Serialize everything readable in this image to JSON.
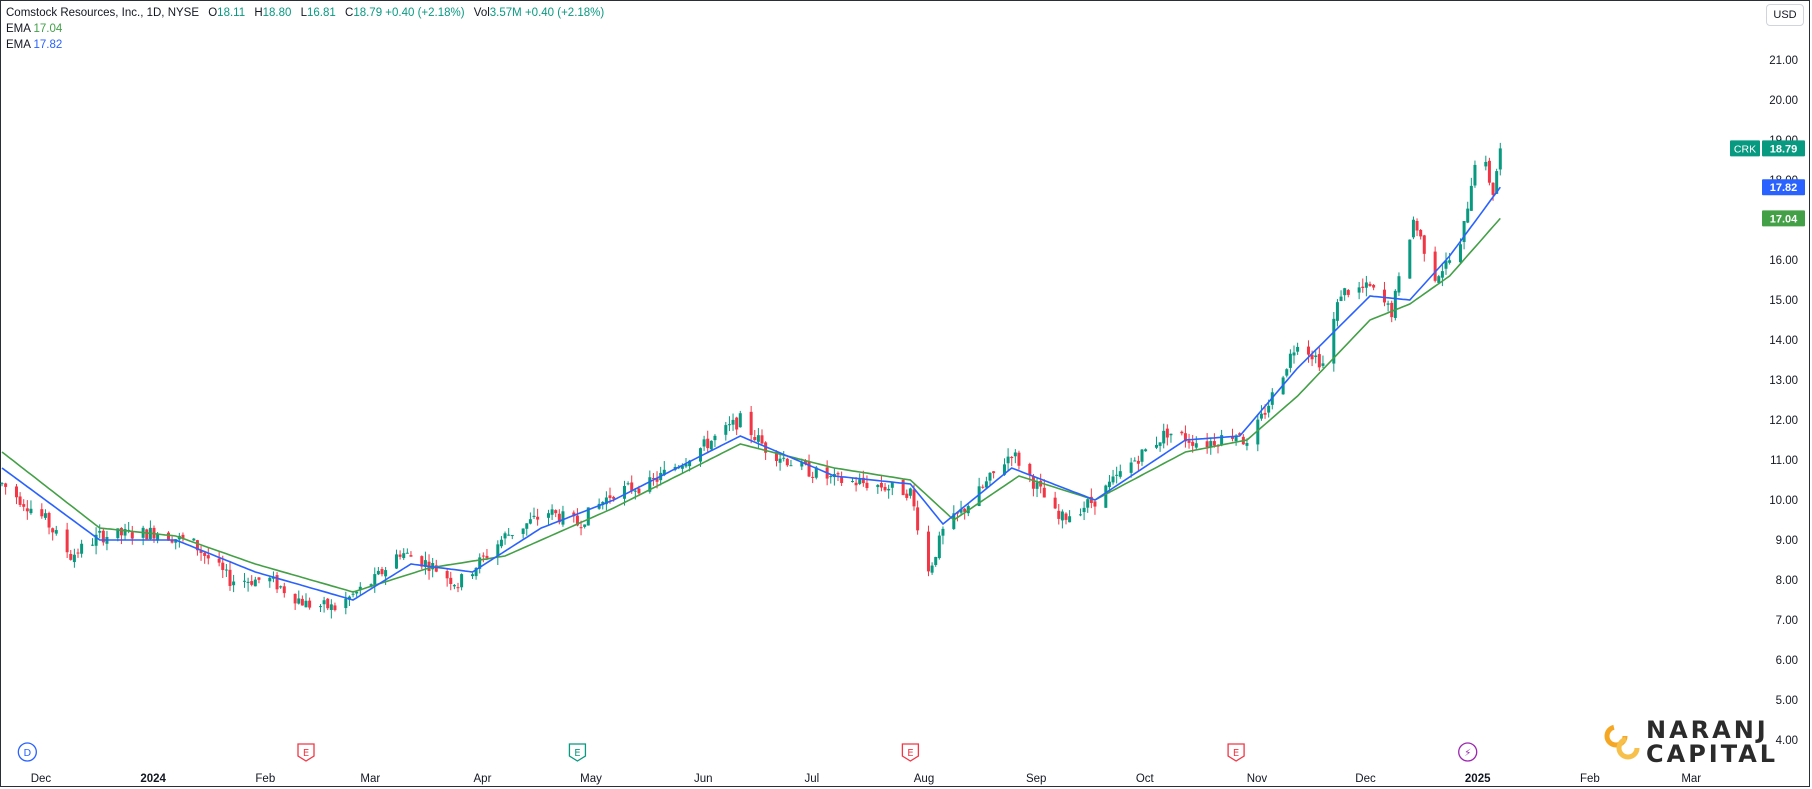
{
  "header": {
    "symbol_line": "Comstock Resources, Inc., 1D, NYSE",
    "o_label": "O",
    "o_value": "18.11",
    "h_label": "H",
    "h_value": "18.80",
    "l_label": "L",
    "l_value": "16.81",
    "c_label": "C",
    "c_value": "18.79",
    "change": "+0.40 (+2.18%)",
    "vol_label": "Vol",
    "vol_value": "3.57M",
    "vol_change": "+0.40 (+2.18%)",
    "ema1_label": "EMA",
    "ema1_value": "17.04",
    "ema2_label": "EMA",
    "ema2_value": "17.82"
  },
  "currency": "USD",
  "logo": {
    "line1": "NARANJ",
    "line2": "CAPITAL"
  },
  "colors": {
    "up": "#089981",
    "down": "#f23645",
    "ema_fast": "#2962ff",
    "ema_slow": "#43a047",
    "tag_ticker": "#089981"
  },
  "chart_data": {
    "type": "candlestick",
    "ticker": "CRK",
    "ylim": [
      3.5,
      22.0
    ],
    "x_range": [
      "2023-11-23",
      "2025-03-20"
    ],
    "y_ticks": [
      "21.00",
      "20.00",
      "19.00",
      "18.00",
      "17.00",
      "16.00",
      "15.00",
      "14.00",
      "13.00",
      "12.00",
      "11.00",
      "10.00",
      "9.00",
      "8.00",
      "7.00",
      "6.00",
      "5.00",
      "4.00"
    ],
    "x_ticks": [
      {
        "label": "Dec",
        "date": "2023-12-01",
        "bold": false
      },
      {
        "label": "2024",
        "date": "2024-01-01",
        "bold": true
      },
      {
        "label": "Feb",
        "date": "2024-02-01",
        "bold": false
      },
      {
        "label": "Mar",
        "date": "2024-03-01",
        "bold": false
      },
      {
        "label": "Apr",
        "date": "2024-04-01",
        "bold": false
      },
      {
        "label": "May",
        "date": "2024-05-01",
        "bold": false
      },
      {
        "label": "Jun",
        "date": "2024-06-01",
        "bold": false
      },
      {
        "label": "Jul",
        "date": "2024-07-01",
        "bold": false
      },
      {
        "label": "Aug",
        "date": "2024-08-01",
        "bold": false
      },
      {
        "label": "Sep",
        "date": "2024-09-01",
        "bold": false
      },
      {
        "label": "Oct",
        "date": "2024-10-01",
        "bold": false
      },
      {
        "label": "Nov",
        "date": "2024-11-01",
        "bold": false
      },
      {
        "label": "Dec",
        "date": "2024-12-01",
        "bold": false
      },
      {
        "label": "2025",
        "date": "2025-01-01",
        "bold": true
      },
      {
        "label": "Feb",
        "date": "2025-02-01",
        "bold": false
      },
      {
        "label": "Mar",
        "date": "2025-03-01",
        "bold": false
      }
    ],
    "price_anchors": [
      [
        "2023-11-23",
        10.4
      ],
      [
        "2023-12-05",
        9.5
      ],
      [
        "2023-12-12",
        8.6
      ],
      [
        "2023-12-20",
        9.1
      ],
      [
        "2024-01-05",
        9.2
      ],
      [
        "2024-01-15",
        8.9
      ],
      [
        "2024-01-25",
        8.0
      ],
      [
        "2024-02-05",
        8.0
      ],
      [
        "2024-02-15",
        7.4
      ],
      [
        "2024-02-23",
        7.3
      ],
      [
        "2024-03-05",
        8.0
      ],
      [
        "2024-03-12",
        8.7
      ],
      [
        "2024-03-20",
        8.4
      ],
      [
        "2024-03-28",
        7.9
      ],
      [
        "2024-04-10",
        9.1
      ],
      [
        "2024-04-22",
        9.7
      ],
      [
        "2024-04-30",
        9.4
      ],
      [
        "2024-05-10",
        10.2
      ],
      [
        "2024-05-20",
        10.4
      ],
      [
        "2024-05-31",
        11.1
      ],
      [
        "2024-06-14",
        12.0
      ],
      [
        "2024-06-21",
        11.3
      ],
      [
        "2024-07-01",
        10.8
      ],
      [
        "2024-07-10",
        10.5
      ],
      [
        "2024-07-20",
        10.4
      ],
      [
        "2024-07-31",
        10.2
      ],
      [
        "2024-08-05",
        8.2
      ],
      [
        "2024-08-09",
        9.2
      ],
      [
        "2024-08-20",
        10.3
      ],
      [
        "2024-08-28",
        11.2
      ],
      [
        "2024-09-05",
        10.2
      ],
      [
        "2024-09-10",
        9.5
      ],
      [
        "2024-09-20",
        10.0
      ],
      [
        "2024-10-01",
        11.0
      ],
      [
        "2024-10-10",
        11.7
      ],
      [
        "2024-10-20",
        11.4
      ],
      [
        "2024-10-30",
        11.7
      ],
      [
        "2024-11-01",
        11.3
      ],
      [
        "2024-11-08",
        12.6
      ],
      [
        "2024-11-15",
        14.0
      ],
      [
        "2024-11-22",
        13.4
      ],
      [
        "2024-11-27",
        15.2
      ],
      [
        "2024-12-05",
        15.3
      ],
      [
        "2024-12-11",
        14.7
      ],
      [
        "2024-12-17",
        17.0
      ],
      [
        "2024-12-23",
        15.6
      ],
      [
        "2024-12-30",
        16.3
      ],
      [
        "2025-01-03",
        18.5
      ],
      [
        "2025-01-06",
        18.3
      ],
      [
        "2025-01-08",
        17.7
      ],
      [
        "2025-01-10",
        18.79
      ]
    ],
    "ema_fast": {
      "name": "EMA",
      "last": 17.82,
      "anchors": [
        [
          "2023-11-23",
          10.8
        ],
        [
          "2023-12-20",
          9.0
        ],
        [
          "2024-01-10",
          9.0
        ],
        [
          "2024-02-01",
          8.2
        ],
        [
          "2024-02-28",
          7.5
        ],
        [
          "2024-03-15",
          8.4
        ],
        [
          "2024-04-01",
          8.2
        ],
        [
          "2024-04-20",
          9.3
        ],
        [
          "2024-05-10",
          10.0
        ],
        [
          "2024-06-14",
          11.6
        ],
        [
          "2024-07-10",
          10.6
        ],
        [
          "2024-07-31",
          10.4
        ],
        [
          "2024-08-09",
          9.4
        ],
        [
          "2024-08-28",
          10.8
        ],
        [
          "2024-09-20",
          10.0
        ],
        [
          "2024-10-15",
          11.5
        ],
        [
          "2024-10-30",
          11.6
        ],
        [
          "2024-11-15",
          13.3
        ],
        [
          "2024-12-05",
          15.1
        ],
        [
          "2024-12-16",
          15.0
        ],
        [
          "2024-12-27",
          16.1
        ],
        [
          "2025-01-10",
          17.82
        ]
      ]
    },
    "ema_slow": {
      "name": "EMA",
      "last": 17.04,
      "anchors": [
        [
          "2023-11-23",
          11.2
        ],
        [
          "2023-12-20",
          9.3
        ],
        [
          "2024-01-10",
          9.1
        ],
        [
          "2024-02-01",
          8.4
        ],
        [
          "2024-02-28",
          7.7
        ],
        [
          "2024-03-20",
          8.3
        ],
        [
          "2024-04-10",
          8.6
        ],
        [
          "2024-05-10",
          9.8
        ],
        [
          "2024-06-14",
          11.4
        ],
        [
          "2024-07-10",
          10.8
        ],
        [
          "2024-07-31",
          10.5
        ],
        [
          "2024-08-12",
          9.5
        ],
        [
          "2024-08-30",
          10.6
        ],
        [
          "2024-09-20",
          10.0
        ],
        [
          "2024-10-15",
          11.2
        ],
        [
          "2024-11-01",
          11.5
        ],
        [
          "2024-11-15",
          12.6
        ],
        [
          "2024-12-05",
          14.5
        ],
        [
          "2024-12-16",
          14.9
        ],
        [
          "2024-12-27",
          15.6
        ],
        [
          "2025-01-10",
          17.04
        ]
      ]
    },
    "event_markers": [
      {
        "date": "2023-11-30",
        "symbol": "D",
        "color": "#2962ff"
      },
      {
        "date": "2024-02-15",
        "symbol": "E",
        "color": "#f23645"
      },
      {
        "date": "2024-04-30",
        "symbol": "E",
        "color": "#089981"
      },
      {
        "date": "2024-07-31",
        "symbol": "E",
        "color": "#f23645"
      },
      {
        "date": "2024-10-29",
        "symbol": "E",
        "color": "#f23645"
      },
      {
        "date": "2025-01-01",
        "symbol": "⚡",
        "color": "#9c27b0"
      }
    ],
    "price_tags": [
      {
        "label": "CRK",
        "value": "18.79",
        "price": 18.79,
        "color": "#089981"
      },
      {
        "label": "",
        "value": "17.82",
        "price": 17.82,
        "color": "#2962ff"
      },
      {
        "label": "",
        "value": "17.04",
        "price": 17.04,
        "color": "#43a047"
      }
    ]
  }
}
